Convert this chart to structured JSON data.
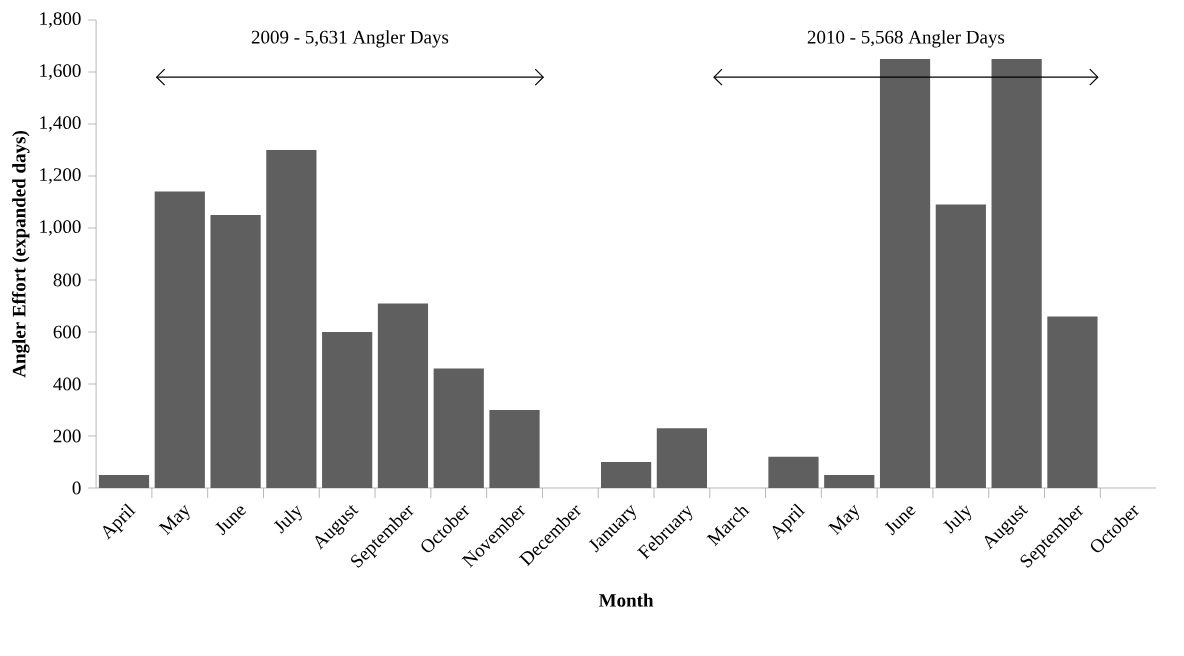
{
  "chart_data": {
    "type": "bar",
    "xlabel": "Month",
    "ylabel": "Angler Effort (expanded days)",
    "categories": [
      "April",
      "May",
      "June",
      "July",
      "August",
      "September",
      "October",
      "November",
      "December",
      "January",
      "February",
      "March",
      "April",
      "May",
      "June",
      "July",
      "August",
      "September",
      "October"
    ],
    "values": [
      50,
      1140,
      1050,
      1300,
      600,
      710,
      460,
      300,
      0,
      100,
      230,
      0,
      120,
      50,
      1650,
      1090,
      1650,
      660,
      0
    ],
    "color": "#5f5f5f",
    "ylim": [
      0,
      1800
    ],
    "yticks": [
      0,
      200,
      400,
      600,
      800,
      {
        "value": 1000,
        "label": "1,000"
      },
      {
        "value": 1200,
        "label": "1,200"
      },
      {
        "value": 1400,
        "label": "1,400"
      },
      {
        "value": 1600,
        "label": "1,600"
      },
      {
        "value": 1800,
        "label": "1,800"
      }
    ],
    "annotations": [
      "2009 - 5,631 Angler Days",
      "2010 - 5,568 Angler Days"
    ],
    "grid": false
  }
}
